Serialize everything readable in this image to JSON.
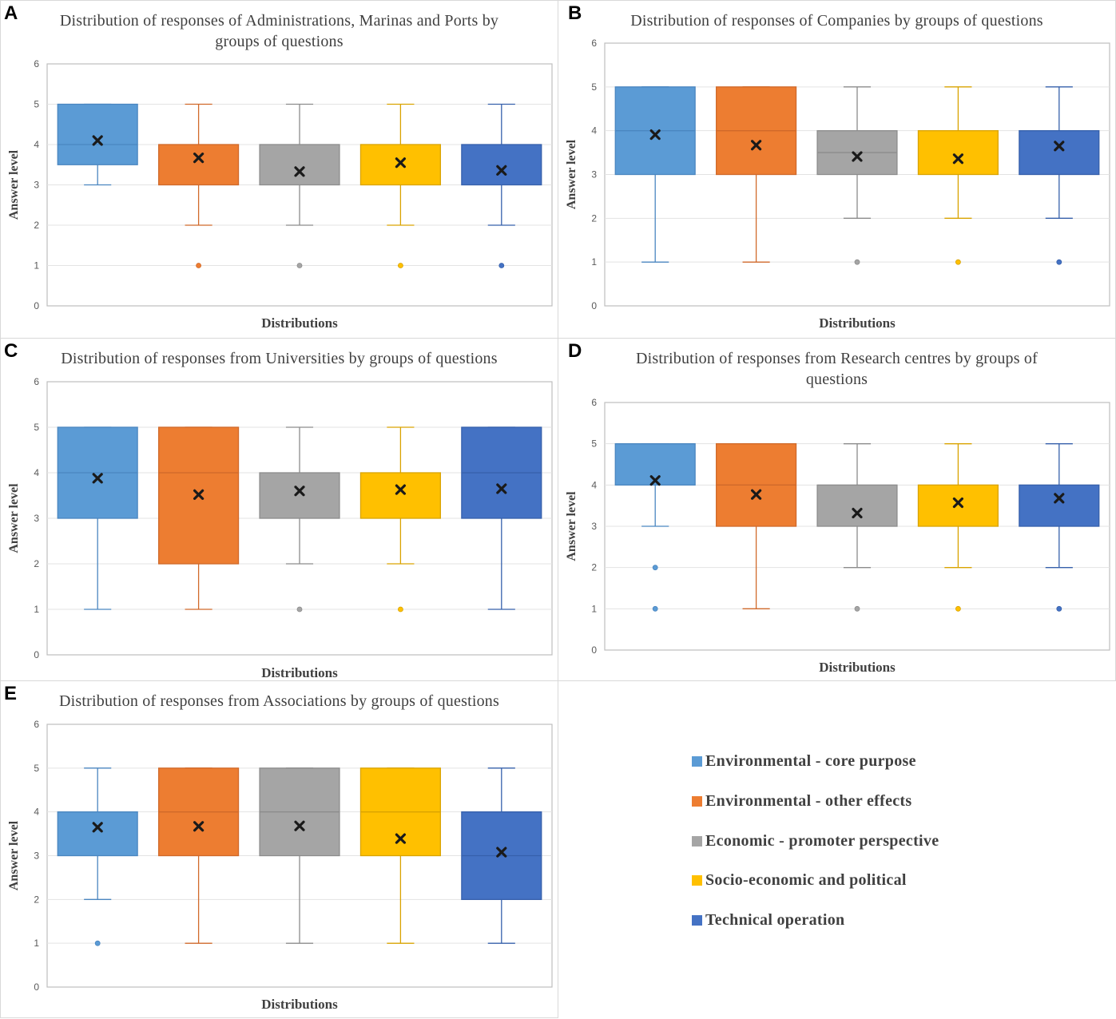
{
  "legend": {
    "items": [
      {
        "label": "Environmental - core purpose",
        "color": "#5b9bd5"
      },
      {
        "label": "Environmental - other effects",
        "color": "#ed7d31"
      },
      {
        "label": "Economic - promoter perspective",
        "color": "#a5a5a5"
      },
      {
        "label": "Socio-economic and political",
        "color": "#ffc000"
      },
      {
        "label": "Technical operation",
        "color": "#4472c4"
      }
    ]
  },
  "chart_data": [
    {
      "letter": "A",
      "type": "box",
      "title": "Distribution of responses of Administrations, Marinas and Ports by groups of questions",
      "xlabel": "Distributions",
      "ylabel": "Answer level",
      "ylim": [
        0,
        6
      ],
      "yticks": [
        "0",
        "1",
        "2",
        "3",
        "4",
        "5",
        "6"
      ],
      "boxes": [
        {
          "series": "Environmental - core purpose",
          "min": 3,
          "q1": 3.5,
          "median": 4,
          "q3": 5,
          "max": 5,
          "mean": 4.1,
          "outliers": []
        },
        {
          "series": "Environmental - other effects",
          "min": 2,
          "q1": 3,
          "median": 4,
          "q3": 4,
          "max": 5,
          "mean": 3.67,
          "outliers": [
            1
          ]
        },
        {
          "series": "Economic - promoter perspective",
          "min": 2,
          "q1": 3,
          "median": 3,
          "q3": 4,
          "max": 5,
          "mean": 3.33,
          "outliers": [
            1
          ]
        },
        {
          "series": "Socio-economic and political",
          "min": 2,
          "q1": 3,
          "median": 4,
          "q3": 4,
          "max": 5,
          "mean": 3.55,
          "outliers": [
            1
          ]
        },
        {
          "series": "Technical operation",
          "min": 2,
          "q1": 3,
          "median": 3,
          "q3": 4,
          "max": 5,
          "mean": 3.36,
          "outliers": [
            1
          ]
        }
      ]
    },
    {
      "letter": "B",
      "type": "box",
      "title": "Distribution of responses of Companies by groups of questions",
      "xlabel": "Distributions",
      "ylabel": "Answer level",
      "ylim": [
        0,
        6
      ],
      "yticks": [
        "0",
        "1",
        "2",
        "3",
        "4",
        "5",
        "6"
      ],
      "boxes": [
        {
          "series": "Environmental - core purpose",
          "min": 1,
          "q1": 3,
          "median": 4,
          "q3": 5,
          "max": 5,
          "mean": 3.91,
          "outliers": []
        },
        {
          "series": "Environmental - other effects",
          "min": 1,
          "q1": 3,
          "median": 4,
          "q3": 5,
          "max": 5,
          "mean": 3.67,
          "outliers": []
        },
        {
          "series": "Economic - promoter perspective",
          "min": 2,
          "q1": 3,
          "median": 3.5,
          "q3": 4,
          "max": 5,
          "mean": 3.41,
          "outliers": [
            1
          ]
        },
        {
          "series": "Socio-economic and political",
          "min": 2,
          "q1": 3,
          "median": 4,
          "q3": 4,
          "max": 5,
          "mean": 3.36,
          "outliers": [
            1
          ]
        },
        {
          "series": "Technical operation",
          "min": 2,
          "q1": 3,
          "median": 4,
          "q3": 4,
          "max": 5,
          "mean": 3.65,
          "outliers": [
            1
          ]
        }
      ]
    },
    {
      "letter": "C",
      "type": "box",
      "title": "Distribution of responses from Universities by groups of questions",
      "xlabel": "Distributions",
      "ylabel": "Answer level",
      "ylim": [
        0,
        6
      ],
      "yticks": [
        "0",
        "1",
        "2",
        "3",
        "4",
        "5",
        "6"
      ],
      "boxes": [
        {
          "series": "Environmental - core purpose",
          "min": 1,
          "q1": 3,
          "median": 4,
          "q3": 5,
          "max": 5,
          "mean": 3.88,
          "outliers": []
        },
        {
          "series": "Environmental - other effects",
          "min": 1,
          "q1": 2,
          "median": 4,
          "q3": 5,
          "max": 5,
          "mean": 3.52,
          "outliers": []
        },
        {
          "series": "Economic - promoter perspective",
          "min": 2,
          "q1": 3,
          "median": 4,
          "q3": 4,
          "max": 5,
          "mean": 3.6,
          "outliers": [
            1
          ]
        },
        {
          "series": "Socio-economic and political",
          "min": 2,
          "q1": 3,
          "median": 4,
          "q3": 4,
          "max": 5,
          "mean": 3.63,
          "outliers": [
            1
          ]
        },
        {
          "series": "Technical operation",
          "min": 1,
          "q1": 3,
          "median": 4,
          "q3": 5,
          "max": 5,
          "mean": 3.65,
          "outliers": []
        }
      ]
    },
    {
      "letter": "D",
      "type": "box",
      "title": "Distribution of responses from Research centres by groups of questions",
      "xlabel": "Distributions",
      "ylabel": "Answer level",
      "ylim": [
        0,
        6
      ],
      "yticks": [
        "0",
        "1",
        "2",
        "3",
        "4",
        "5",
        "6"
      ],
      "boxes": [
        {
          "series": "Environmental - core purpose",
          "min": 3,
          "q1": 4,
          "median": 5,
          "q3": 5,
          "max": 5,
          "mean": 4.11,
          "outliers": [
            2,
            1
          ]
        },
        {
          "series": "Environmental - other effects",
          "min": 1,
          "q1": 3,
          "median": 4,
          "q3": 5,
          "max": 5,
          "mean": 3.77,
          "outliers": []
        },
        {
          "series": "Economic - promoter perspective",
          "min": 2,
          "q1": 3,
          "median": 3,
          "q3": 4,
          "max": 5,
          "mean": 3.32,
          "outliers": [
            1
          ]
        },
        {
          "series": "Socio-economic and political",
          "min": 2,
          "q1": 3,
          "median": 4,
          "q3": 4,
          "max": 5,
          "mean": 3.57,
          "outliers": [
            1
          ]
        },
        {
          "series": "Technical operation",
          "min": 2,
          "q1": 3,
          "median": 4,
          "q3": 4,
          "max": 5,
          "mean": 3.68,
          "outliers": [
            1
          ]
        }
      ]
    },
    {
      "letter": "E",
      "type": "box",
      "title": "Distribution of responses from Associations by groups of questions",
      "xlabel": "Distributions",
      "ylabel": "Answer level",
      "ylim": [
        0,
        6
      ],
      "yticks": [
        "0",
        "1",
        "2",
        "3",
        "4",
        "5",
        "6"
      ],
      "boxes": [
        {
          "series": "Environmental - core purpose",
          "min": 2,
          "q1": 3,
          "median": 4,
          "q3": 4,
          "max": 5,
          "mean": 3.65,
          "outliers": [
            1
          ]
        },
        {
          "series": "Environmental - other effects",
          "min": 1,
          "q1": 3,
          "median": 4,
          "q3": 5,
          "max": 5,
          "mean": 3.67,
          "outliers": []
        },
        {
          "series": "Economic - promoter perspective",
          "min": 1,
          "q1": 3,
          "median": 4,
          "q3": 5,
          "max": 5,
          "mean": 3.68,
          "outliers": []
        },
        {
          "series": "Socio-economic and political",
          "min": 1,
          "q1": 3,
          "median": 4,
          "q3": 5,
          "max": 5,
          "mean": 3.39,
          "outliers": []
        },
        {
          "series": "Technical operation",
          "min": 1,
          "q1": 2,
          "median": 3,
          "q3": 4,
          "max": 5,
          "mean": 3.08,
          "outliers": []
        }
      ]
    }
  ]
}
